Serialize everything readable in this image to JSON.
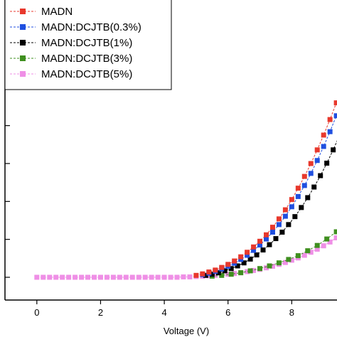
{
  "chart_data": {
    "type": "scatter",
    "title": "",
    "xlabel": "Voltage (V)",
    "ylabel": "",
    "xlim": [
      -1.0,
      10.0
    ],
    "ylim": [
      -0.6,
      7.5
    ],
    "x_ticks": [
      "0",
      "2",
      "4",
      "6",
      "8"
    ],
    "x_tick_values": [
      0,
      2,
      4,
      6,
      8
    ],
    "y_tick_values": [
      0,
      1,
      2,
      3,
      4,
      5,
      6,
      7
    ],
    "grid": false,
    "legend_position": "top-left",
    "series": [
      {
        "name": "MADN",
        "color": "#e8382c",
        "marker": "square",
        "line": "dashed",
        "x": [
          5.0,
          5.2,
          5.4,
          5.6,
          5.8,
          6.0,
          6.2,
          6.4,
          6.6,
          6.8,
          7.0,
          7.2,
          7.4,
          7.6,
          7.8,
          8.0,
          8.2,
          8.4,
          8.6,
          8.8,
          9.0,
          9.2,
          9.4,
          9.6,
          9.8
        ],
        "y": [
          0.05,
          0.09,
          0.14,
          0.19,
          0.26,
          0.34,
          0.43,
          0.54,
          0.66,
          0.8,
          0.95,
          1.12,
          1.32,
          1.54,
          1.78,
          2.05,
          2.35,
          2.66,
          3.0,
          3.36,
          3.75,
          4.16,
          4.6,
          5.07,
          5.6
        ]
      },
      {
        "name": "MADN:DCJTB(0.3%)",
        "color": "#1f4fe0",
        "marker": "square",
        "line": "dashed",
        "x": [
          5.2,
          5.4,
          5.6,
          5.8,
          6.0,
          6.2,
          6.4,
          6.6,
          6.8,
          7.0,
          7.2,
          7.4,
          7.6,
          7.8,
          8.0,
          8.2,
          8.4,
          8.6,
          8.8,
          9.0,
          9.2,
          9.4,
          9.6,
          9.8
        ],
        "y": [
          0.07,
          0.11,
          0.16,
          0.22,
          0.29,
          0.37,
          0.47,
          0.58,
          0.71,
          0.85,
          1.01,
          1.19,
          1.39,
          1.61,
          1.86,
          2.13,
          2.42,
          2.74,
          3.08,
          3.45,
          3.84,
          4.26,
          4.71,
          5.2
        ]
      },
      {
        "name": "MADN:DCJTB(1%)",
        "color": "#000000",
        "marker": "square",
        "line": "dashed",
        "x": [
          5.3,
          5.5,
          5.7,
          5.9,
          6.1,
          6.3,
          6.5,
          6.7,
          6.9,
          7.1,
          7.3,
          7.5,
          7.7,
          7.9,
          8.1,
          8.3,
          8.5,
          8.7,
          8.9,
          9.1,
          9.3,
          9.5,
          9.7,
          9.9
        ],
        "y": [
          0.05,
          0.08,
          0.12,
          0.17,
          0.23,
          0.3,
          0.38,
          0.48,
          0.59,
          0.72,
          0.86,
          1.02,
          1.19,
          1.39,
          1.6,
          1.84,
          2.1,
          2.38,
          2.68,
          3.01,
          3.36,
          3.74,
          4.15,
          4.58
        ]
      },
      {
        "name": "MADN:DCJTB(3%)",
        "color": "#3f8f1f",
        "marker": "square",
        "line": "dashed",
        "x": [
          5.5,
          5.8,
          6.1,
          6.4,
          6.7,
          7.0,
          7.3,
          7.6,
          7.9,
          8.2,
          8.5,
          8.8,
          9.1,
          9.4,
          9.7,
          9.9
        ],
        "y": [
          0.03,
          0.05,
          0.08,
          0.12,
          0.17,
          0.23,
          0.3,
          0.38,
          0.47,
          0.57,
          0.7,
          0.84,
          1.01,
          1.2,
          1.42,
          1.58
        ]
      },
      {
        "name": "MADN:DCJTB(5%)",
        "color": "#ef8fe6",
        "marker": "square",
        "line": "dashed",
        "x": [
          0.0,
          0.2,
          0.4,
          0.6,
          0.8,
          1.0,
          1.2,
          1.4,
          1.6,
          1.8,
          2.0,
          2.2,
          2.4,
          2.6,
          2.8,
          3.0,
          3.2,
          3.4,
          3.6,
          3.8,
          4.0,
          4.2,
          4.4,
          4.6,
          4.8,
          5.0,
          5.2,
          5.4,
          5.6,
          5.8,
          6.0,
          6.2,
          6.4,
          6.6,
          6.8,
          7.0,
          7.2,
          7.4,
          7.6,
          7.8,
          8.0,
          8.2,
          8.4,
          8.6,
          8.8,
          9.0,
          9.2,
          9.4,
          9.6,
          9.8
        ],
        "y": [
          0,
          0,
          0,
          0,
          0,
          0,
          0,
          0,
          0,
          0,
          0,
          0,
          0,
          0,
          0,
          0,
          0,
          0,
          0,
          0,
          0,
          0,
          0,
          0.01,
          0.01,
          0.02,
          0.03,
          0.04,
          0.05,
          0.06,
          0.08,
          0.1,
          0.12,
          0.15,
          0.18,
          0.21,
          0.25,
          0.29,
          0.34,
          0.39,
          0.45,
          0.51,
          0.58,
          0.66,
          0.74,
          0.83,
          0.93,
          1.04,
          1.16,
          1.3
        ]
      }
    ]
  }
}
